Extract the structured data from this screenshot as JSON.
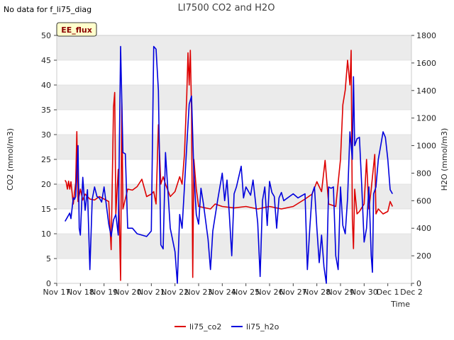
{
  "note": "No data for f_li75_diag",
  "badge": "EE_flux",
  "chart_data": {
    "type": "line",
    "title": "LI7500 CO2 and H2O",
    "xlabel": "Time",
    "ylabel": "CO2 (mmol/m3)",
    "y2label": "H2O (mmol/m3)",
    "x_ticks": [
      "Nov 17",
      "Nov 18",
      "Nov 19",
      "Nov 20",
      "Nov 21",
      "Nov 22",
      "Nov 23",
      "Nov 24",
      "Nov 25",
      "Nov 26",
      "Nov 27",
      "Nov 28",
      "Nov 29",
      "Nov 30",
      "Dec 1",
      "Dec 2"
    ],
    "xlim": [
      0,
      15
    ],
    "ylim": [
      0,
      50
    ],
    "y2lim": [
      0,
      1800
    ],
    "y_ticks": [
      "0",
      "5",
      "10",
      "15",
      "20",
      "25",
      "30",
      "35",
      "40",
      "45",
      "50"
    ],
    "y2_ticks": [
      "0",
      "200",
      "400",
      "600",
      "800",
      "1000",
      "1200",
      "1400",
      "1600",
      "1800"
    ],
    "band_color": "#ebebeb",
    "series": [
      {
        "name": "li75_co2",
        "axis": "left",
        "color": "#dd0000",
        "points": [
          [
            0.35,
            20.8
          ],
          [
            0.4,
            20.4
          ],
          [
            0.45,
            19.0
          ],
          [
            0.5,
            20.6
          ],
          [
            0.55,
            19.0
          ],
          [
            0.6,
            20.5
          ],
          [
            0.7,
            16.0
          ],
          [
            0.8,
            20.3
          ],
          [
            0.85,
            30.6
          ],
          [
            0.9,
            16.5
          ],
          [
            1.0,
            19.0
          ],
          [
            1.1,
            16.8
          ],
          [
            1.2,
            18.0
          ],
          [
            1.4,
            17.0
          ],
          [
            1.6,
            16.8
          ],
          [
            1.8,
            17.5
          ],
          [
            2.0,
            17.0
          ],
          [
            2.2,
            16.5
          ],
          [
            2.3,
            6.8
          ],
          [
            2.4,
            35.5
          ],
          [
            2.45,
            38.5
          ],
          [
            2.5,
            14.0
          ],
          [
            2.6,
            23.0
          ],
          [
            2.7,
            0.6
          ],
          [
            2.75,
            37.0
          ],
          [
            2.8,
            15.0
          ],
          [
            3.0,
            19.0
          ],
          [
            3.2,
            18.8
          ],
          [
            3.4,
            19.5
          ],
          [
            3.6,
            21.0
          ],
          [
            3.8,
            17.5
          ],
          [
            4.0,
            18.0
          ],
          [
            4.1,
            18.5
          ],
          [
            4.2,
            16.0
          ],
          [
            4.3,
            32.0
          ],
          [
            4.4,
            20.0
          ],
          [
            4.5,
            21.5
          ],
          [
            4.6,
            20.0
          ],
          [
            4.8,
            17.5
          ],
          [
            5.0,
            18.5
          ],
          [
            5.2,
            21.5
          ],
          [
            5.3,
            20.0
          ],
          [
            5.4,
            26.0
          ],
          [
            5.5,
            38.0
          ],
          [
            5.55,
            46.5
          ],
          [
            5.6,
            40.0
          ],
          [
            5.65,
            47.0
          ],
          [
            5.7,
            35.0
          ],
          [
            5.75,
            1.2
          ],
          [
            5.8,
            25.0
          ],
          [
            5.9,
            19.0
          ],
          [
            6.0,
            15.5
          ],
          [
            6.5,
            15.0
          ],
          [
            6.7,
            16.0
          ],
          [
            7.0,
            15.5
          ],
          [
            7.5,
            15.2
          ],
          [
            8.0,
            15.5
          ],
          [
            8.5,
            15.0
          ],
          [
            9.0,
            15.5
          ],
          [
            9.5,
            15.0
          ],
          [
            10.0,
            15.5
          ],
          [
            10.5,
            17.0
          ],
          [
            10.8,
            18.0
          ],
          [
            11.0,
            20.5
          ],
          [
            11.2,
            18.5
          ],
          [
            11.35,
            24.8
          ],
          [
            11.5,
            16.0
          ],
          [
            11.8,
            15.5
          ],
          [
            12.0,
            25.0
          ],
          [
            12.1,
            36.0
          ],
          [
            12.2,
            39.0
          ],
          [
            12.3,
            45.0
          ],
          [
            12.4,
            40.0
          ],
          [
            12.45,
            47.0
          ],
          [
            12.5,
            13.0
          ],
          [
            12.55,
            7.0
          ],
          [
            12.6,
            19.0
          ],
          [
            12.7,
            14.0
          ],
          [
            12.8,
            14.5
          ],
          [
            13.0,
            16.0
          ],
          [
            13.1,
            25.0
          ],
          [
            13.2,
            15.0
          ],
          [
            13.3,
            19.0
          ],
          [
            13.45,
            26.0
          ],
          [
            13.5,
            14.0
          ],
          [
            13.6,
            15.0
          ],
          [
            13.8,
            14.0
          ],
          [
            14.0,
            14.5
          ],
          [
            14.1,
            16.5
          ],
          [
            14.2,
            15.5
          ]
        ]
      },
      {
        "name": "li75_h2o",
        "axis": "right",
        "color": "#0000dd",
        "points": [
          [
            0.35,
            450
          ],
          [
            0.45,
            480
          ],
          [
            0.55,
            510
          ],
          [
            0.6,
            470
          ],
          [
            0.7,
            620
          ],
          [
            0.75,
            610
          ],
          [
            0.8,
            630
          ],
          [
            0.9,
            1000
          ],
          [
            0.95,
            400
          ],
          [
            1.0,
            350
          ],
          [
            1.1,
            770
          ],
          [
            1.2,
            530
          ],
          [
            1.3,
            680
          ],
          [
            1.4,
            100
          ],
          [
            1.5,
            610
          ],
          [
            1.6,
            700
          ],
          [
            1.7,
            630
          ],
          [
            1.8,
            620
          ],
          [
            1.9,
            590
          ],
          [
            2.0,
            700
          ],
          [
            2.2,
            430
          ],
          [
            2.3,
            340
          ],
          [
            2.4,
            460
          ],
          [
            2.5,
            500
          ],
          [
            2.6,
            350
          ],
          [
            2.7,
            1720
          ],
          [
            2.8,
            950
          ],
          [
            2.9,
            940
          ],
          [
            3.0,
            400
          ],
          [
            3.2,
            400
          ],
          [
            3.4,
            360
          ],
          [
            3.6,
            350
          ],
          [
            3.8,
            340
          ],
          [
            4.0,
            380
          ],
          [
            4.1,
            1720
          ],
          [
            4.2,
            1700
          ],
          [
            4.3,
            1400
          ],
          [
            4.4,
            280
          ],
          [
            4.5,
            250
          ],
          [
            4.6,
            950
          ],
          [
            4.8,
            400
          ],
          [
            5.0,
            230
          ],
          [
            5.1,
            0
          ],
          [
            5.2,
            500
          ],
          [
            5.3,
            400
          ],
          [
            5.4,
            700
          ],
          [
            5.5,
            1000
          ],
          [
            5.6,
            1300
          ],
          [
            5.7,
            1360
          ],
          [
            5.8,
            800
          ],
          [
            5.9,
            500
          ],
          [
            6.0,
            430
          ],
          [
            6.1,
            690
          ],
          [
            6.2,
            580
          ],
          [
            6.4,
            320
          ],
          [
            6.5,
            100
          ],
          [
            6.6,
            380
          ],
          [
            6.8,
            600
          ],
          [
            7.0,
            800
          ],
          [
            7.1,
            600
          ],
          [
            7.2,
            750
          ],
          [
            7.3,
            500
          ],
          [
            7.4,
            200
          ],
          [
            7.5,
            650
          ],
          [
            7.6,
            700
          ],
          [
            7.8,
            850
          ],
          [
            7.9,
            620
          ],
          [
            8.0,
            700
          ],
          [
            8.2,
            640
          ],
          [
            8.3,
            750
          ],
          [
            8.4,
            600
          ],
          [
            8.5,
            440
          ],
          [
            8.6,
            50
          ],
          [
            8.7,
            600
          ],
          [
            8.8,
            700
          ],
          [
            8.9,
            420
          ],
          [
            9.0,
            740
          ],
          [
            9.1,
            660
          ],
          [
            9.2,
            630
          ],
          [
            9.3,
            400
          ],
          [
            9.4,
            620
          ],
          [
            9.5,
            660
          ],
          [
            9.6,
            600
          ],
          [
            10.0,
            650
          ],
          [
            10.2,
            620
          ],
          [
            10.5,
            650
          ],
          [
            10.6,
            100
          ],
          [
            10.7,
            400
          ],
          [
            10.8,
            650
          ],
          [
            10.9,
            700
          ],
          [
            11.0,
            400
          ],
          [
            11.1,
            150
          ],
          [
            11.2,
            350
          ],
          [
            11.3,
            120
          ],
          [
            11.4,
            0
          ],
          [
            11.5,
            700
          ],
          [
            11.6,
            690
          ],
          [
            11.7,
            700
          ],
          [
            11.8,
            200
          ],
          [
            11.9,
            100
          ],
          [
            12.0,
            700
          ],
          [
            12.1,
            420
          ],
          [
            12.2,
            360
          ],
          [
            12.3,
            620
          ],
          [
            12.4,
            1100
          ],
          [
            12.5,
            900
          ],
          [
            12.55,
            1500
          ],
          [
            12.6,
            1000
          ],
          [
            12.7,
            1050
          ],
          [
            12.8,
            1060
          ],
          [
            12.9,
            700
          ],
          [
            13.0,
            300
          ],
          [
            13.1,
            400
          ],
          [
            13.2,
            700
          ],
          [
            13.3,
            200
          ],
          [
            13.35,
            80
          ],
          [
            13.4,
            650
          ],
          [
            13.5,
            700
          ],
          [
            13.6,
            900
          ],
          [
            13.7,
            1000
          ],
          [
            13.8,
            1100
          ],
          [
            13.9,
            1060
          ],
          [
            14.0,
            900
          ],
          [
            14.1,
            680
          ],
          [
            14.2,
            650
          ]
        ]
      }
    ]
  }
}
